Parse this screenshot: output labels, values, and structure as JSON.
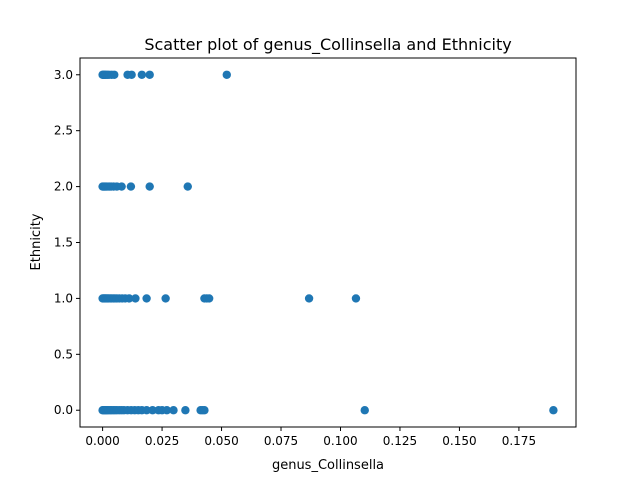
{
  "chart_data": {
    "type": "scatter",
    "title": "Scatter plot of genus_Collinsella and Ethnicity",
    "xlabel": "genus_Collinsella",
    "ylabel": "Ethnicity",
    "xlim": [
      -0.0095,
      0.199
    ],
    "ylim": [
      -0.15,
      3.15
    ],
    "xticks": [
      0.0,
      0.025,
      0.05,
      0.075,
      0.1,
      0.125,
      0.15,
      0.175
    ],
    "xtick_labels": [
      "0.000",
      "0.025",
      "0.050",
      "0.075",
      "0.100",
      "0.125",
      "0.150",
      "0.175"
    ],
    "yticks": [
      0.0,
      0.5,
      1.0,
      1.5,
      2.0,
      2.5,
      3.0
    ],
    "ytick_labels": [
      "0.0",
      "0.5",
      "1.0",
      "1.5",
      "2.0",
      "2.5",
      "3.0"
    ],
    "grid": false,
    "marker_color": "#1f77b4",
    "series": [
      {
        "x": [
          0.0,
          0.0003,
          0.0006,
          0.001,
          0.0014,
          0.002,
          0.0027,
          0.0038,
          0.0049,
          0.0105,
          0.0122,
          0.0165,
          0.0198,
          0.0522,
          0.0,
          0.0004,
          0.0008,
          0.0012,
          0.0017,
          0.0023,
          0.003,
          0.0036,
          0.0046,
          0.006,
          0.008,
          0.0119,
          0.0198,
          0.0358,
          0.0,
          0.0004,
          0.0008,
          0.0012,
          0.0016,
          0.0021,
          0.0026,
          0.0032,
          0.0038,
          0.0045,
          0.0052,
          0.006,
          0.007,
          0.0082,
          0.0095,
          0.0112,
          0.0138,
          0.0185,
          0.0265,
          0.0428,
          0.0438,
          0.0448,
          0.0868,
          0.1065,
          0.0,
          0.0004,
          0.0008,
          0.0012,
          0.0016,
          0.002,
          0.0026,
          0.0032,
          0.0038,
          0.0045,
          0.0052,
          0.006,
          0.007,
          0.008,
          0.009,
          0.0105,
          0.012,
          0.0135,
          0.015,
          0.0165,
          0.0185,
          0.021,
          0.0235,
          0.025,
          0.027,
          0.0298,
          0.0348,
          0.0412,
          0.042,
          0.0428,
          0.1102,
          0.1895
        ],
        "y": [
          3,
          3,
          3,
          3,
          3,
          3,
          3,
          3,
          3,
          3,
          3,
          3,
          3,
          3,
          2,
          2,
          2,
          2,
          2,
          2,
          2,
          2,
          2,
          2,
          2,
          2,
          2,
          2,
          1,
          1,
          1,
          1,
          1,
          1,
          1,
          1,
          1,
          1,
          1,
          1,
          1,
          1,
          1,
          1,
          1,
          1,
          1,
          1,
          1,
          1,
          1,
          1,
          0,
          0,
          0,
          0,
          0,
          0,
          0,
          0,
          0,
          0,
          0,
          0,
          0,
          0,
          0,
          0,
          0,
          0,
          0,
          0,
          0,
          0,
          0,
          0,
          0,
          0,
          0,
          0,
          0,
          0,
          0,
          0
        ]
      }
    ]
  }
}
